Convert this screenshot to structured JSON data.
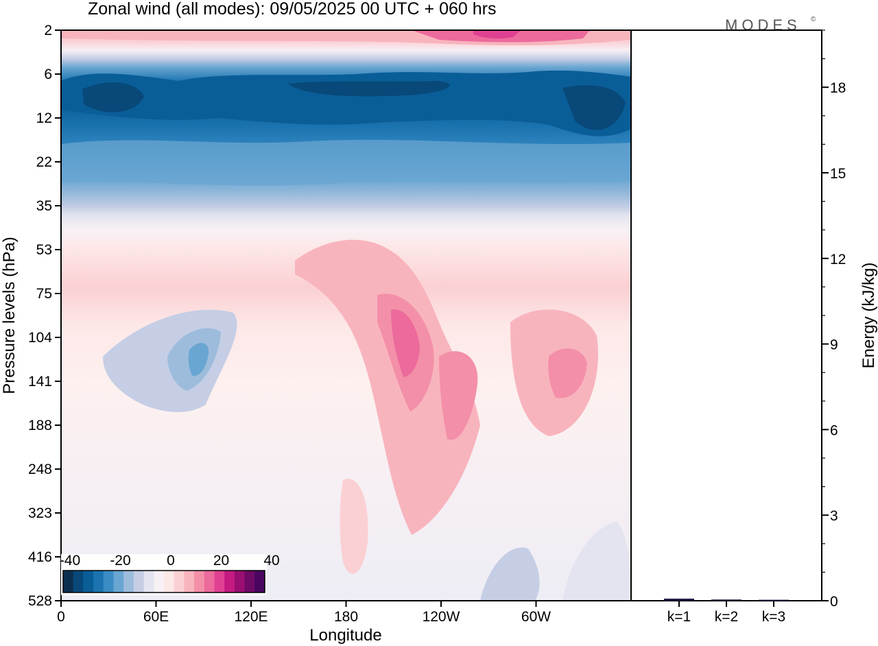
{
  "title": "Zonal wind (all modes):  09/05/2025  00 UTC  + 060 hrs",
  "brand": "MODES",
  "brand_mark": "©",
  "chart_data": [
    {
      "type": "heatmap",
      "xlabel": "Longitude",
      "ylabel": "Pressure levels (hPa)",
      "x_ticks": [
        "0",
        "60E",
        "120E",
        "180",
        "120W",
        "60W"
      ],
      "x_tick_values": [
        0,
        60,
        120,
        180,
        240,
        300
      ],
      "xlim": [
        0,
        360
      ],
      "y_ticks": [
        "2",
        "6",
        "12",
        "22",
        "35",
        "53",
        "75",
        "104",
        "141",
        "188",
        "248",
        "323",
        "416",
        "528"
      ],
      "colorbar": {
        "tick_labels": [
          "-40",
          "-20",
          "0",
          "20",
          "40"
        ],
        "range": [
          -40,
          40
        ],
        "colors": [
          "#0d2f4f",
          "#08497a",
          "#0a5e98",
          "#1b74b0",
          "#3a8cc4",
          "#6aa6d2",
          "#9dbcdc",
          "#c5cee5",
          "#e3e4ef",
          "#f7f1f5",
          "#fde8e8",
          "#fbd0d3",
          "#f8b4bd",
          "#f38fa8",
          "#ec6a9c",
          "#e04092",
          "#c41a82",
          "#9a0f72",
          "#6f0a66",
          "#4a0560"
        ]
      },
      "wind_field": {
        "description_levels_hPa": [
          "2",
          "6",
          "12",
          "22",
          "35",
          "53",
          "75",
          "104",
          "141",
          "188",
          "248",
          "323",
          "416",
          "528"
        ],
        "approx_mean_by_level": [
          12,
          -33,
          -30,
          -20,
          -6,
          4,
          6,
          2,
          1,
          0,
          1,
          0,
          0,
          -3
        ]
      }
    },
    {
      "type": "bar",
      "categories": [
        "k=1",
        "k=2",
        "k=3"
      ],
      "values": [
        0.05,
        0.02,
        0.01
      ],
      "ylabel": "Energy (kJ/kg)",
      "ylim": [
        0,
        20
      ],
      "y_ticks": [
        "0",
        "3",
        "6",
        "9",
        "12",
        "15",
        "18"
      ],
      "y_tick_values": [
        0,
        3,
        6,
        9,
        12,
        15,
        18
      ]
    }
  ]
}
